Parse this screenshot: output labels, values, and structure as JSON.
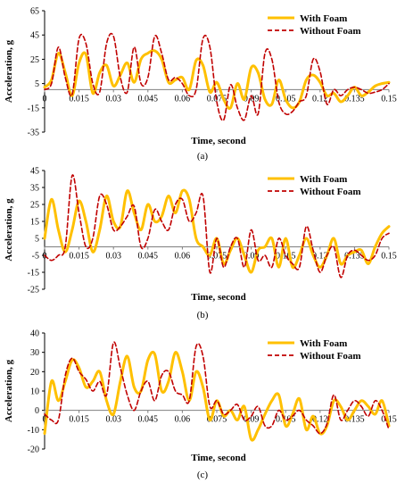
{
  "colors": {
    "with_foam": "#FFC000",
    "without_foam": "#C00000",
    "axis": "#000000",
    "zero_line": "#7f7f7f"
  },
  "chart_data": [
    {
      "type": "line",
      "caption": "(a)",
      "xlabel": "Time, second",
      "ylabel": "Acceleration, g",
      "xlim": [
        0,
        0.15
      ],
      "ylim": [
        -35,
        65
      ],
      "x_ticks": [
        "0",
        "0.015",
        "0.03",
        "0.045",
        "0.06",
        "0.075",
        "0.09",
        "0.105",
        "0.12",
        "0.135",
        "0.15"
      ],
      "y_ticks": [
        "65",
        "45",
        "25",
        "5",
        "-15",
        "-35"
      ],
      "legend": "top-right",
      "series": [
        {
          "name": "With Foam",
          "style": "solid",
          "x": [
            0,
            0.003,
            0.006,
            0.009,
            0.012,
            0.015,
            0.018,
            0.021,
            0.024,
            0.027,
            0.03,
            0.033,
            0.036,
            0.039,
            0.042,
            0.045,
            0.048,
            0.051,
            0.054,
            0.057,
            0.06,
            0.063,
            0.066,
            0.069,
            0.072,
            0.075,
            0.078,
            0.081,
            0.084,
            0.087,
            0.09,
            0.093,
            0.096,
            0.099,
            0.102,
            0.105,
            0.108,
            0.111,
            0.114,
            0.117,
            0.12,
            0.123,
            0.126,
            0.129,
            0.132,
            0.135,
            0.138,
            0.141,
            0.144,
            0.147,
            0.15
          ],
          "y": [
            2,
            8,
            30,
            14,
            -5,
            22,
            29,
            -3,
            14,
            20,
            3,
            12,
            22,
            6,
            25,
            30,
            32,
            25,
            6,
            8,
            10,
            0,
            24,
            20,
            -2,
            6,
            -8,
            -15,
            5,
            -8,
            18,
            14,
            -8,
            -12,
            8,
            -8,
            -15,
            -10,
            8,
            12,
            6,
            -5,
            -3,
            -10,
            -5,
            2,
            -5,
            -2,
            3,
            5,
            6
          ]
        },
        {
          "name": "Without Foam",
          "style": "dashed",
          "x": [
            0,
            0.003,
            0.006,
            0.009,
            0.012,
            0.015,
            0.018,
            0.021,
            0.024,
            0.027,
            0.03,
            0.033,
            0.036,
            0.039,
            0.042,
            0.045,
            0.048,
            0.051,
            0.054,
            0.057,
            0.06,
            0.063,
            0.066,
            0.069,
            0.072,
            0.075,
            0.078,
            0.081,
            0.084,
            0.087,
            0.09,
            0.093,
            0.096,
            0.099,
            0.102,
            0.105,
            0.108,
            0.111,
            0.114,
            0.117,
            0.12,
            0.123,
            0.126,
            0.129,
            0.132,
            0.135,
            0.138,
            0.141,
            0.144,
            0.147,
            0.15
          ],
          "y": [
            0,
            5,
            35,
            10,
            -4,
            42,
            38,
            5,
            -2,
            38,
            44,
            10,
            -2,
            35,
            5,
            10,
            44,
            30,
            8,
            10,
            5,
            -5,
            0,
            42,
            35,
            -10,
            -25,
            4,
            -15,
            -25,
            -5,
            -20,
            30,
            25,
            -10,
            -20,
            -18,
            -10,
            -5,
            25,
            15,
            -12,
            0,
            -5,
            0,
            2,
            0,
            -3,
            -2,
            0,
            5
          ]
        }
      ]
    },
    {
      "type": "line",
      "caption": "(b)",
      "xlabel": "Time, second",
      "ylabel": "Acceleration, g",
      "xlim": [
        0,
        0.15
      ],
      "ylim": [
        -25,
        45
      ],
      "x_ticks": [
        "0",
        "0.015",
        "0.03",
        "0.045",
        "0.06",
        "0.075",
        "0.09",
        "0.105",
        "0.12",
        "0.135",
        "0.15"
      ],
      "y_ticks": [
        "45",
        "35",
        "25",
        "15",
        "5",
        "-5",
        "-15",
        "-25"
      ],
      "legend": "top-right",
      "series": [
        {
          "name": "With Foam",
          "style": "solid",
          "x": [
            0,
            0.003,
            0.006,
            0.009,
            0.012,
            0.015,
            0.018,
            0.021,
            0.024,
            0.027,
            0.03,
            0.033,
            0.036,
            0.039,
            0.042,
            0.045,
            0.048,
            0.051,
            0.054,
            0.057,
            0.06,
            0.063,
            0.066,
            0.069,
            0.072,
            0.075,
            0.078,
            0.081,
            0.084,
            0.087,
            0.09,
            0.093,
            0.096,
            0.099,
            0.102,
            0.105,
            0.108,
            0.111,
            0.114,
            0.117,
            0.12,
            0.123,
            0.126,
            0.129,
            0.132,
            0.135,
            0.138,
            0.141,
            0.144,
            0.147,
            0.15
          ],
          "y": [
            5,
            28,
            10,
            -3,
            10,
            27,
            15,
            -3,
            10,
            30,
            15,
            12,
            33,
            20,
            10,
            25,
            15,
            18,
            30,
            20,
            33,
            28,
            5,
            0,
            -5,
            5,
            -10,
            -2,
            5,
            -5,
            -15,
            -2,
            0,
            5,
            -12,
            5,
            -12,
            -5,
            5,
            -5,
            -12,
            -5,
            5,
            -10,
            -5,
            -3,
            -2,
            -10,
            0,
            8,
            12
          ]
        },
        {
          "name": "Without Foam",
          "style": "dashed",
          "x": [
            0,
            0.003,
            0.006,
            0.009,
            0.012,
            0.015,
            0.018,
            0.021,
            0.024,
            0.027,
            0.03,
            0.033,
            0.036,
            0.039,
            0.042,
            0.045,
            0.048,
            0.051,
            0.054,
            0.057,
            0.06,
            0.063,
            0.066,
            0.069,
            0.072,
            0.075,
            0.078,
            0.081,
            0.084,
            0.087,
            0.09,
            0.093,
            0.096,
            0.099,
            0.102,
            0.105,
            0.108,
            0.111,
            0.114,
            0.117,
            0.12,
            0.123,
            0.126,
            0.129,
            0.132,
            0.135,
            0.138,
            0.141,
            0.144,
            0.147,
            0.15
          ],
          "y": [
            -5,
            -8,
            -5,
            0,
            42,
            20,
            0,
            5,
            30,
            25,
            10,
            12,
            18,
            24,
            0,
            5,
            22,
            15,
            10,
            25,
            28,
            15,
            20,
            30,
            -15,
            5,
            -12,
            0,
            5,
            -12,
            10,
            -8,
            -5,
            -12,
            5,
            -5,
            -10,
            -12,
            12,
            -2,
            -15,
            -5,
            0,
            -18,
            -5,
            -2,
            -5,
            -8,
            -5,
            5,
            8
          ]
        }
      ]
    },
    {
      "type": "line",
      "caption": "(c)",
      "xlabel": "Time, second",
      "ylabel": "Acceleration, g",
      "xlim": [
        0,
        0.15
      ],
      "ylim": [
        -20,
        40
      ],
      "x_ticks": [
        "0",
        "0.015",
        "0.03",
        "0.045",
        "0.06",
        "0.075",
        "0.09",
        "0.105",
        "0.12",
        "0.135",
        "0.15"
      ],
      "y_ticks": [
        "40",
        "30",
        "20",
        "10",
        "0",
        "-10",
        "-20"
      ],
      "legend": "top-right",
      "series": [
        {
          "name": "With Foam",
          "style": "solid",
          "x": [
            0,
            0.003,
            0.006,
            0.009,
            0.012,
            0.015,
            0.018,
            0.021,
            0.024,
            0.027,
            0.03,
            0.033,
            0.036,
            0.039,
            0.042,
            0.045,
            0.048,
            0.051,
            0.054,
            0.057,
            0.06,
            0.063,
            0.066,
            0.069,
            0.072,
            0.075,
            0.078,
            0.081,
            0.084,
            0.087,
            0.09,
            0.093,
            0.096,
            0.099,
            0.102,
            0.105,
            0.108,
            0.111,
            0.114,
            0.117,
            0.12,
            0.123,
            0.126,
            0.129,
            0.132,
            0.135,
            0.138,
            0.141,
            0.144,
            0.147,
            0.15
          ],
          "y": [
            -12,
            15,
            5,
            15,
            26,
            22,
            12,
            15,
            20,
            5,
            -2,
            15,
            28,
            12,
            10,
            26,
            29,
            10,
            15,
            30,
            20,
            5,
            20,
            12,
            -5,
            5,
            -3,
            0,
            -5,
            2,
            -15,
            -10,
            -2,
            5,
            8,
            -8,
            -2,
            6,
            -10,
            -3,
            -12,
            -8,
            5,
            2,
            -5,
            0,
            5,
            2,
            -2,
            5,
            -8
          ]
        },
        {
          "name": "Without Foam",
          "style": "dashed",
          "x": [
            0,
            0.003,
            0.006,
            0.009,
            0.012,
            0.015,
            0.018,
            0.021,
            0.024,
            0.027,
            0.03,
            0.033,
            0.036,
            0.039,
            0.042,
            0.045,
            0.048,
            0.051,
            0.054,
            0.057,
            0.06,
            0.063,
            0.066,
            0.069,
            0.072,
            0.075,
            0.078,
            0.081,
            0.084,
            0.087,
            0.09,
            0.093,
            0.096,
            0.099,
            0.102,
            0.105,
            0.108,
            0.111,
            0.114,
            0.117,
            0.12,
            0.123,
            0.126,
            0.129,
            0.132,
            0.135,
            0.138,
            0.141,
            0.144,
            0.147,
            0.15
          ],
          "y": [
            -2,
            -5,
            -5,
            18,
            27,
            20,
            16,
            10,
            15,
            8,
            35,
            22,
            8,
            0,
            10,
            15,
            5,
            18,
            20,
            10,
            8,
            5,
            33,
            28,
            2,
            5,
            -2,
            0,
            3,
            -5,
            -3,
            2,
            -8,
            -8,
            0,
            -5,
            -3,
            0,
            -5,
            -8,
            -12,
            -7,
            8,
            -5,
            0,
            5,
            2,
            -3,
            5,
            0,
            -10
          ]
        }
      ]
    }
  ]
}
